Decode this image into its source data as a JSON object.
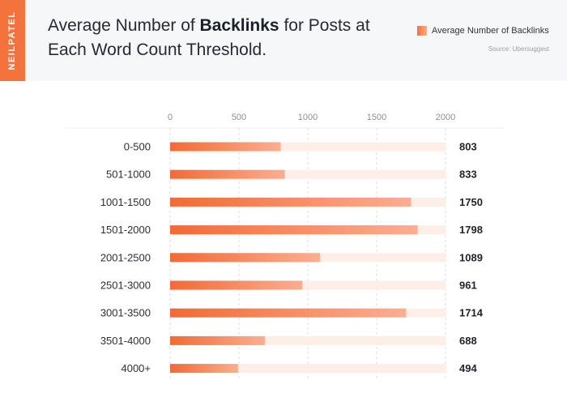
{
  "brand": {
    "name": "NEILPATEL"
  },
  "header": {
    "title_prefix": "Average Number of ",
    "title_bold": "Backlinks",
    "title_suffix": " for Posts at Each Word Count Threshold."
  },
  "legend": {
    "label": "Average Number of Backlinks"
  },
  "source": "Source: Ubersuggest",
  "colors": {
    "bar_start": "#f26a36",
    "bar_end": "#fbae91",
    "track": "#fdeee7",
    "grid": "#dcdcdc"
  },
  "chart_data": {
    "type": "bar",
    "orientation": "horizontal",
    "title": "Average Number of Backlinks for Posts at Each Word Count Threshold.",
    "categories": [
      "0-500",
      "501-1000",
      "1001-1500",
      "1501-2000",
      "2001-2500",
      "2501-3000",
      "3001-3500",
      "3501-4000",
      "4000+"
    ],
    "series": [
      {
        "name": "Average Number of Backlinks",
        "values": [
          803,
          833,
          1750,
          1798,
          1089,
          961,
          1714,
          688,
          494
        ]
      }
    ],
    "xlim": [
      0,
      2000
    ],
    "xticks": [
      0,
      500,
      1000,
      1500,
      2000
    ],
    "xlabel": "",
    "ylabel": "",
    "grid": true,
    "legend_position": "top-right"
  }
}
